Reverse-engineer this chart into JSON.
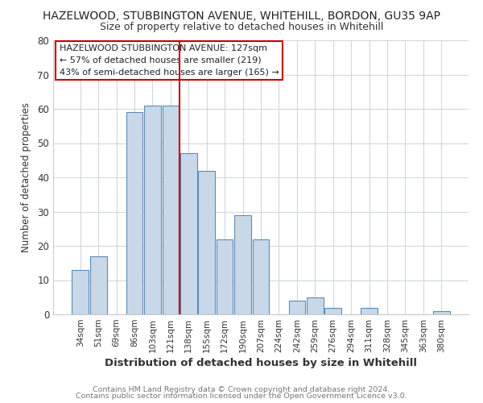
{
  "title": "HAZELWOOD, STUBBINGTON AVENUE, WHITEHILL, BORDON, GU35 9AP",
  "subtitle": "Size of property relative to detached houses in Whitehill",
  "xlabel": "Distribution of detached houses by size in Whitehill",
  "ylabel": "Number of detached properties",
  "bar_labels": [
    "34sqm",
    "51sqm",
    "69sqm",
    "86sqm",
    "103sqm",
    "121sqm",
    "138sqm",
    "155sqm",
    "172sqm",
    "190sqm",
    "207sqm",
    "224sqm",
    "242sqm",
    "259sqm",
    "276sqm",
    "294sqm",
    "311sqm",
    "328sqm",
    "345sqm",
    "363sqm",
    "380sqm"
  ],
  "bar_values": [
    13,
    17,
    0,
    59,
    61,
    61,
    47,
    42,
    22,
    29,
    22,
    0,
    4,
    5,
    2,
    0,
    2,
    0,
    0,
    0,
    1
  ],
  "bar_color": "#c8d8e8",
  "bar_edge_color": "#5b8db8",
  "vline_x": 6.0,
  "vline_color": "#cc0000",
  "annotation_title": "HAZELWOOD STUBBINGTON AVENUE: 127sqm",
  "annotation_line1": "← 57% of detached houses are smaller (219)",
  "annotation_line2": "43% of semi-detached houses are larger (165) →",
  "annotation_box_color": "#ffffff",
  "annotation_box_edge": "#cc0000",
  "ylim": [
    0,
    80
  ],
  "yticks": [
    0,
    10,
    20,
    30,
    40,
    50,
    60,
    70,
    80
  ],
  "footer1": "Contains HM Land Registry data © Crown copyright and database right 2024.",
  "footer2": "Contains public sector information licensed under the Open Government Licence v3.0.",
  "bg_color": "#ffffff",
  "plot_bg_color": "#ffffff",
  "grid_color": "#d0d8e0"
}
